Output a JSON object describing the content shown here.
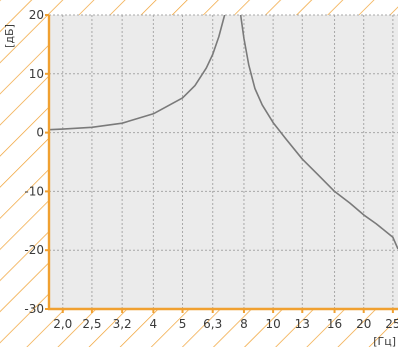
{
  "chart_data": {
    "type": "line",
    "title": "",
    "xlabel": "[Гц]",
    "ylabel": "[дБ]",
    "x_scale": "log",
    "xlim": [
      1.8,
      26
    ],
    "ylim": [
      -30,
      20
    ],
    "x_ticks": [
      2.0,
      2.5,
      3.15,
      4.0,
      5.0,
      6.3,
      8.0,
      10.0,
      12.5,
      16.0,
      20.0,
      25.0
    ],
    "x_tick_labels": [
      "2,0",
      "2,5",
      "3,2",
      "4",
      "5",
      "6,3",
      "8",
      "10",
      "13",
      "16",
      "20",
      "25"
    ],
    "y_ticks": [
      20,
      10,
      0,
      -10,
      -20,
      -30
    ],
    "y_tick_labels": [
      "20",
      "10",
      "0",
      "-10",
      "-20",
      "-30"
    ],
    "grid": true,
    "series": [
      {
        "x": [
          1.8,
          2.0,
          2.5,
          3.15,
          4.0,
          5.0,
          5.5,
          6.0,
          6.3,
          6.6,
          6.9,
          7.1
        ],
        "y": [
          0.5,
          0.6,
          0.9,
          1.6,
          3.2,
          5.9,
          8.0,
          11.0,
          13.3,
          16.3,
          20.0,
          23.0
        ]
      },
      {
        "x": [
          7.6,
          7.8,
          8.0,
          8.3,
          8.7,
          9.2,
          10.0,
          11.0,
          12.5,
          14.0,
          16.0,
          18.0,
          20.0,
          22.0,
          25.0,
          26.0
        ],
        "y": [
          23.0,
          20.0,
          16.0,
          11.5,
          7.5,
          4.7,
          1.7,
          -1.0,
          -4.5,
          -7.0,
          -10.0,
          -12.0,
          -14.0,
          -15.5,
          -17.8,
          -19.8
        ]
      }
    ],
    "colors": {
      "curve": "#7a7a7a",
      "axis": "#f0a030",
      "grid": "#a8a8a8",
      "plot_background": "#ebebeb",
      "hatch": "#f0a030",
      "text": "#3a3a3a"
    }
  }
}
